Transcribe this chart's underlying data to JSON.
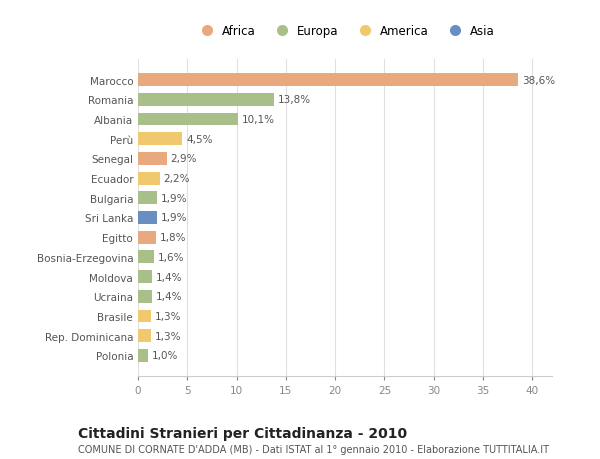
{
  "countries": [
    "Marocco",
    "Romania",
    "Albania",
    "Perù",
    "Senegal",
    "Ecuador",
    "Bulgaria",
    "Sri Lanka",
    "Egitto",
    "Bosnia-Erzegovina",
    "Moldova",
    "Ucraina",
    "Brasile",
    "Rep. Dominicana",
    "Polonia"
  ],
  "values": [
    38.6,
    13.8,
    10.1,
    4.5,
    2.9,
    2.2,
    1.9,
    1.9,
    1.8,
    1.6,
    1.4,
    1.4,
    1.3,
    1.3,
    1.0
  ],
  "labels": [
    "38,6%",
    "13,8%",
    "10,1%",
    "4,5%",
    "2,9%",
    "2,2%",
    "1,9%",
    "1,9%",
    "1,8%",
    "1,6%",
    "1,4%",
    "1,4%",
    "1,3%",
    "1,3%",
    "1,0%"
  ],
  "colors": [
    "#e8a97e",
    "#a8bf8a",
    "#a8bf8a",
    "#f0c96e",
    "#e8a97e",
    "#f0c96e",
    "#a8bf8a",
    "#6b8ec2",
    "#e8a97e",
    "#a8bf8a",
    "#a8bf8a",
    "#a8bf8a",
    "#f0c96e",
    "#f0c96e",
    "#a8bf8a"
  ],
  "legend_labels": [
    "Africa",
    "Europa",
    "America",
    "Asia"
  ],
  "legend_colors": [
    "#e8a97e",
    "#a8bf8a",
    "#f0c96e",
    "#6b8ec2"
  ],
  "title": "Cittadini Stranieri per Cittadinanza - 2010",
  "subtitle": "COMUNE DI CORNATE D'ADDA (MB) - Dati ISTAT al 1° gennaio 2010 - Elaborazione TUTTITALIA.IT",
  "xlim": [
    0,
    42
  ],
  "xticks": [
    0,
    5,
    10,
    15,
    20,
    25,
    30,
    35,
    40
  ],
  "background_color": "#ffffff",
  "plot_background": "#ffffff",
  "grid_color": "#e0e0e0",
  "bar_height": 0.65,
  "label_fontsize": 7.5,
  "tick_fontsize": 7.5,
  "title_fontsize": 10,
  "subtitle_fontsize": 7
}
